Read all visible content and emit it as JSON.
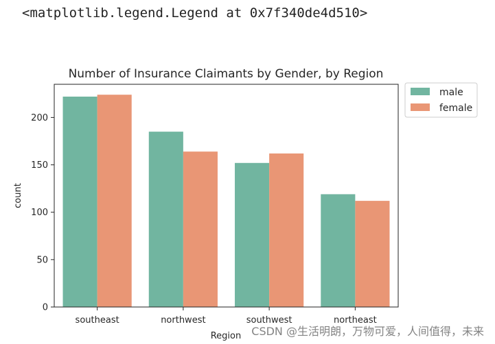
{
  "output_repr": "<matplotlib.legend.Legend at 0x7f340de4d510>",
  "watermark": "CSDN @生活明朗，万物可爱，人间值得，未来",
  "chart_data": {
    "type": "bar",
    "title": "Number of Insurance Claimants by Gender, by Region",
    "xlabel": "Region",
    "ylabel": "count",
    "categories": [
      "southeast",
      "northwest",
      "southwest",
      "northeast"
    ],
    "series": [
      {
        "name": "male",
        "color": "#71b5a0",
        "values": [
          222,
          185,
          152,
          119
        ]
      },
      {
        "name": "female",
        "color": "#e99675",
        "values": [
          224,
          164,
          162,
          112
        ]
      }
    ],
    "ylim": [
      0,
      235
    ],
    "yticks": [
      0,
      50,
      100,
      150,
      200
    ],
    "grid": false,
    "legend": "outside upper right"
  }
}
